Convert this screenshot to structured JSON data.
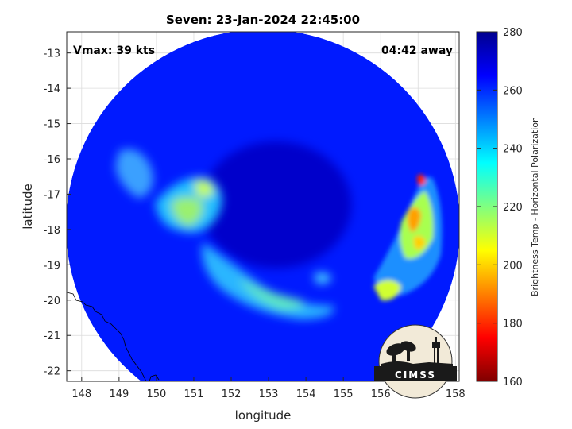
{
  "chart_data": {
    "type": "heatmap",
    "title": "Seven: 23-Jan-2024 22:45:00",
    "xlabel": "longitude",
    "ylabel": "latitude",
    "xlim": [
      147.6,
      158.1
    ],
    "ylim": [
      -22.3,
      -12.4
    ],
    "x_ticks": [
      148,
      149,
      150,
      151,
      152,
      153,
      154,
      155,
      156,
      157,
      158
    ],
    "y_ticks": [
      -13,
      -14,
      -15,
      -16,
      -17,
      -18,
      -19,
      -20,
      -21,
      -22
    ],
    "grid": true,
    "colorbar": {
      "label": "Brightness Temp - Horizontal Polarization",
      "range": [
        160,
        280
      ],
      "ticks": [
        280,
        260,
        240,
        220,
        200,
        180,
        160
      ],
      "colormap": [
        "#7f0000",
        "#ff0000",
        "#ff8000",
        "#ffff00",
        "#80ff80",
        "#00ffff",
        "#0080ff",
        "#0000ff",
        "#00008f"
      ]
    },
    "annotations": {
      "vmax": "Vmax: 39 kts",
      "time_away": "04:42 away"
    },
    "swath": {
      "center_lon": 153.0,
      "center_lat": -17.6,
      "background_temp": 262
    },
    "features": [
      {
        "name": "eye",
        "lon": 153.2,
        "lat": -17.3,
        "temp": 272
      },
      {
        "name": "western-rainband",
        "lon": 150.5,
        "lat": -17.8,
        "temp": 235
      },
      {
        "name": "southern-rainband",
        "lon": 153.5,
        "lat": -19.6,
        "temp": 238
      },
      {
        "name": "eastern-convection",
        "lon": 156.9,
        "lat": -17.8,
        "temp": 205
      },
      {
        "name": "eastern-core",
        "lon": 157.2,
        "lat": -16.8,
        "temp": 185
      }
    ]
  },
  "logo": {
    "text": "CIMSS"
  }
}
